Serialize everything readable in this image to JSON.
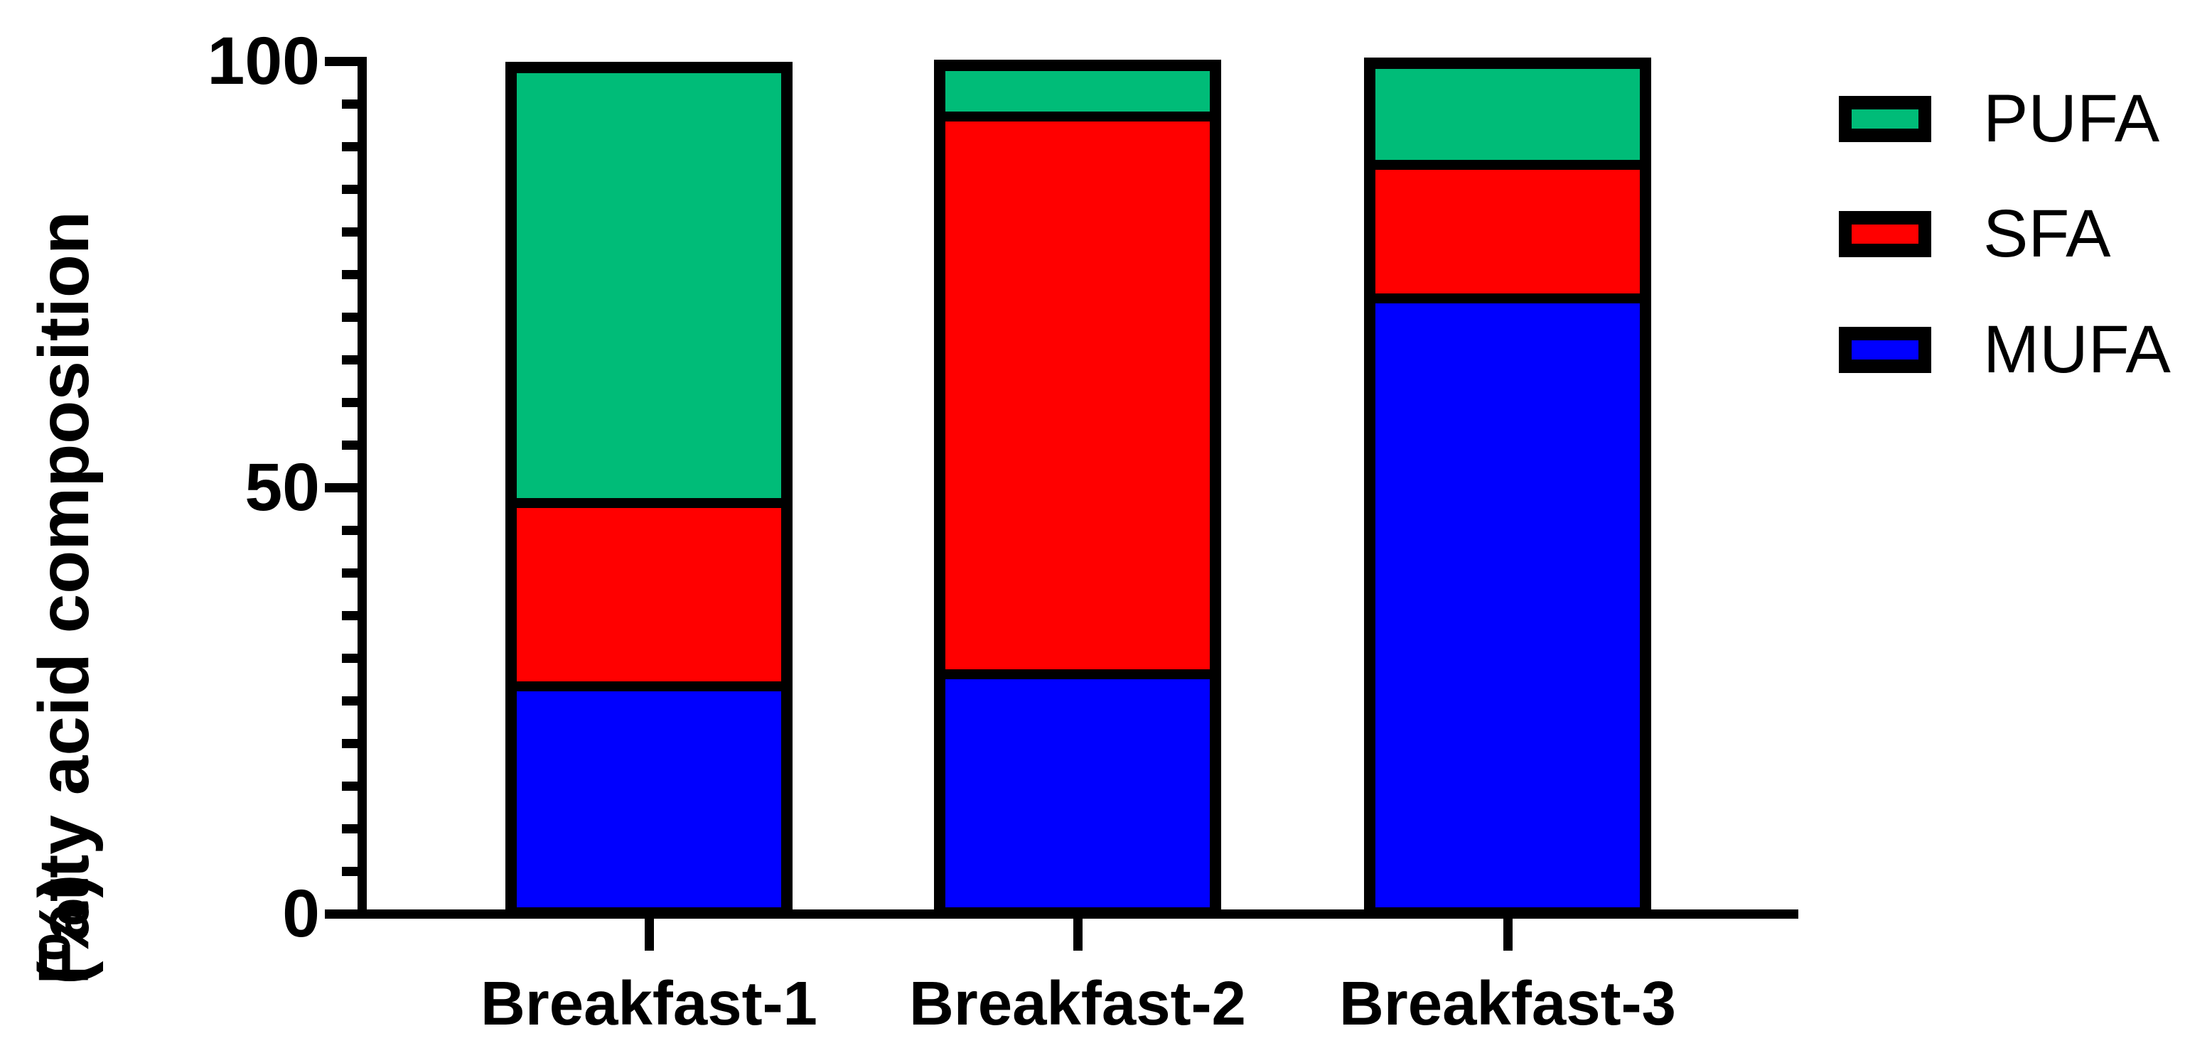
{
  "figure": {
    "background": "#FFFFFF",
    "axis_color": "#000000"
  },
  "chart_data": {
    "type": "bar",
    "stacked": true,
    "title": "",
    "ylabel": "Fatty acid composition",
    "ylabel_line2": "(%)",
    "xlabel": "",
    "ylim": [
      0,
      100
    ],
    "y_major_ticks": [
      0,
      50,
      100
    ],
    "y_minor_tick_step": 5,
    "grid": false,
    "categories": [
      "Breakfast-1",
      "Breakfast-2",
      "Breakfast-3"
    ],
    "series": [
      {
        "name": "MUFA",
        "color": "#0000FF",
        "values": [
          26.7,
          28.1,
          72.2
        ]
      },
      {
        "name": "SFA",
        "color": "#FF0000",
        "values": [
          21.5,
          65.4,
          15.6
        ]
      },
      {
        "name": "PUFA",
        "color": "#00BC78",
        "values": [
          50.4,
          5.3,
          11.3
        ]
      }
    ],
    "bar_totals": [
      98.6,
      98.8,
      99.1
    ],
    "legend": {
      "position": "right-top",
      "entries": [
        "PUFA",
        "SFA",
        "MUFA"
      ]
    }
  }
}
